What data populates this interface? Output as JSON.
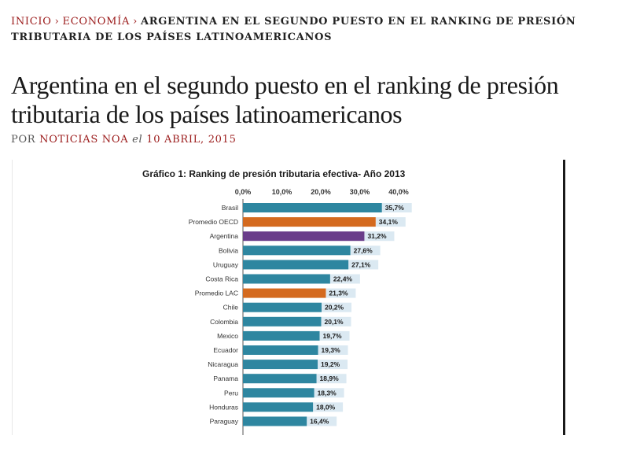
{
  "breadcrumb": {
    "home": "INICIO",
    "separator": "›",
    "section": "ECONOMÍA",
    "current": "ARGENTINA EN EL SEGUNDO PUESTO EN EL RANKING DE PRESIÓN TRIBUTARIA DE LOS PAÍSES LATINOAMERICANOS"
  },
  "article": {
    "title": "Argentina en el segundo puesto en el ranking de presión tributaria de los países latinoamericanos",
    "by_prefix": "POR",
    "author": "NOTICIAS NOA",
    "el": "el",
    "date": "10 ABRIL, 2015"
  },
  "chart_data": {
    "type": "bar",
    "orientation": "horizontal",
    "title": "Gráfico 1: Ranking de presión tributaria efectiva- Año 2013",
    "xlim": [
      0,
      40
    ],
    "ticks": [
      "0,0%",
      "10,0%",
      "20,0%",
      "30,0%",
      "40,0%"
    ],
    "tick_values": [
      0,
      10,
      20,
      30,
      40
    ],
    "categories": [
      "Brasil",
      "Promedio OECD",
      "Argentina",
      "Bolivia",
      "Uruguay",
      "Costa Rica",
      "Promedio LAC",
      "Chile",
      "Colombia",
      "Mexico",
      "Ecuador",
      "Nicaragua",
      "Panama",
      "Peru",
      "Honduras",
      "Paraguay"
    ],
    "values": [
      35.7,
      34.1,
      31.2,
      27.6,
      27.1,
      22.4,
      21.3,
      20.2,
      20.1,
      19.7,
      19.3,
      19.2,
      18.9,
      18.3,
      18.0,
      16.4
    ],
    "labels": [
      "35,7%",
      "34,1%",
      "31,2%",
      "27,6%",
      "27,1%",
      "22,4%",
      "21,3%",
      "20,2%",
      "20,1%",
      "19,7%",
      "19,3%",
      "19,2%",
      "18,9%",
      "18,3%",
      "18,0%",
      "16,4%"
    ],
    "colors": {
      "default": "#2e86a0",
      "promedio": "#d46a1f",
      "argentina": "#6a3d8a",
      "label_bg": "#dbe9f2"
    },
    "bar_color_keys": [
      "default",
      "promedio",
      "argentina",
      "default",
      "default",
      "default",
      "promedio",
      "default",
      "default",
      "default",
      "default",
      "default",
      "default",
      "default",
      "default",
      "default"
    ]
  }
}
